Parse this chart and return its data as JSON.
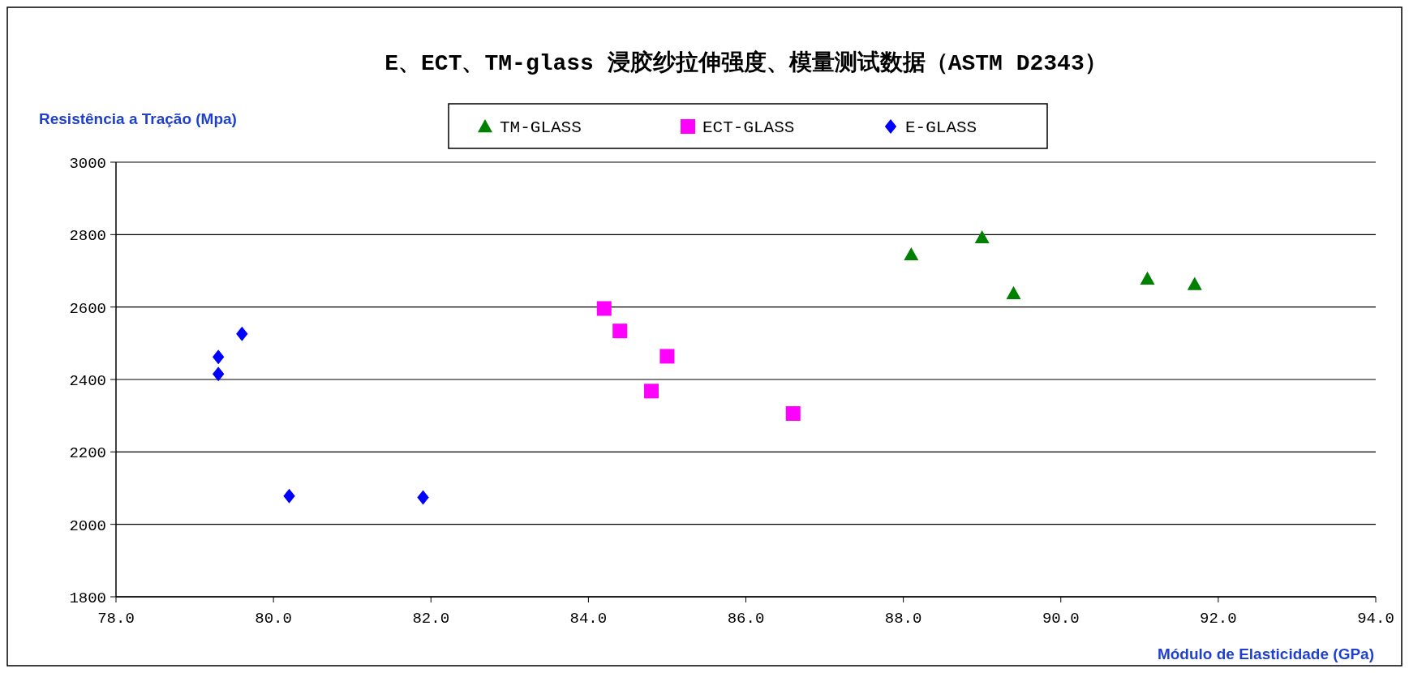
{
  "chart_data": {
    "type": "scatter",
    "title": "E、ECT、TM-glass 浸胶纱拉伸强度、模量测试数据（ASTM D2343）",
    "xlabel": "Módulo de Elasticidade (GPa)",
    "ylabel": "Resistência a Tração (Mpa)",
    "series": [
      {
        "name": "TM-GLASS",
        "color": "#008000",
        "marker": "triangle",
        "x": [
          88.1,
          89.0,
          89.4,
          91.1,
          91.7
        ],
        "values": [
          2745,
          2792,
          2638,
          2678,
          2663
        ]
      },
      {
        "name": "ECT-GLASS",
        "color": "#ff00ff",
        "marker": "square",
        "x": [
          84.2,
          84.4,
          85.0,
          84.8,
          86.6
        ],
        "values": [
          2596,
          2534,
          2464,
          2368,
          2306
        ]
      },
      {
        "name": "E-GLASS",
        "color": "#0000ff",
        "marker": "diamond",
        "x": [
          79.3,
          79.3,
          79.6,
          80.2,
          81.9
        ],
        "values": [
          2462,
          2415,
          2526,
          2078,
          2074
        ]
      }
    ],
    "xlim": [
      78,
      94
    ],
    "xticks": [
      {
        "value": 78,
        "label": "78.0"
      },
      {
        "value": 80,
        "label": "80.0"
      },
      {
        "value": 82,
        "label": "82.0"
      },
      {
        "value": 84,
        "label": "84.0"
      },
      {
        "value": 86,
        "label": "86.0"
      },
      {
        "value": 88,
        "label": "88.0"
      },
      {
        "value": 90,
        "label": "90.0"
      },
      {
        "value": 92,
        "label": "92.0"
      },
      {
        "value": 94,
        "label": "94.0"
      }
    ],
    "ylim": [
      1800,
      3000
    ],
    "yticks": [
      1800,
      2000,
      2200,
      2400,
      2600,
      2800,
      3000
    ],
    "grid": "y",
    "legend": "top"
  }
}
